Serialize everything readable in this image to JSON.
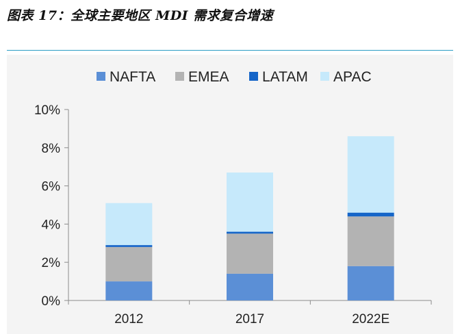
{
  "figure": {
    "title": "图表 17：全球主要地区 MDI 需求复合增速"
  },
  "chart_data": {
    "type": "bar",
    "stacked": true,
    "categories": [
      "2012",
      "2017",
      "2022E"
    ],
    "series": [
      {
        "name": "NAFTA",
        "values": [
          1.0,
          1.4,
          1.8
        ],
        "color": "#5b8fd6"
      },
      {
        "name": "EMEA",
        "values": [
          1.8,
          2.1,
          2.6
        ],
        "color": "#b3b3b3"
      },
      {
        "name": "LATAM",
        "values": [
          0.1,
          0.1,
          0.2
        ],
        "color": "#1565c8"
      },
      {
        "name": "APAC",
        "values": [
          2.2,
          3.1,
          4.0
        ],
        "color": "#c6e9fb"
      }
    ],
    "ylim": [
      0,
      10
    ],
    "yticks": [
      0,
      2,
      4,
      6,
      8,
      10
    ],
    "ytick_labels": [
      "0%",
      "2%",
      "4%",
      "6%",
      "8%",
      "10%"
    ],
    "legend_position": "top",
    "grid": false
  }
}
